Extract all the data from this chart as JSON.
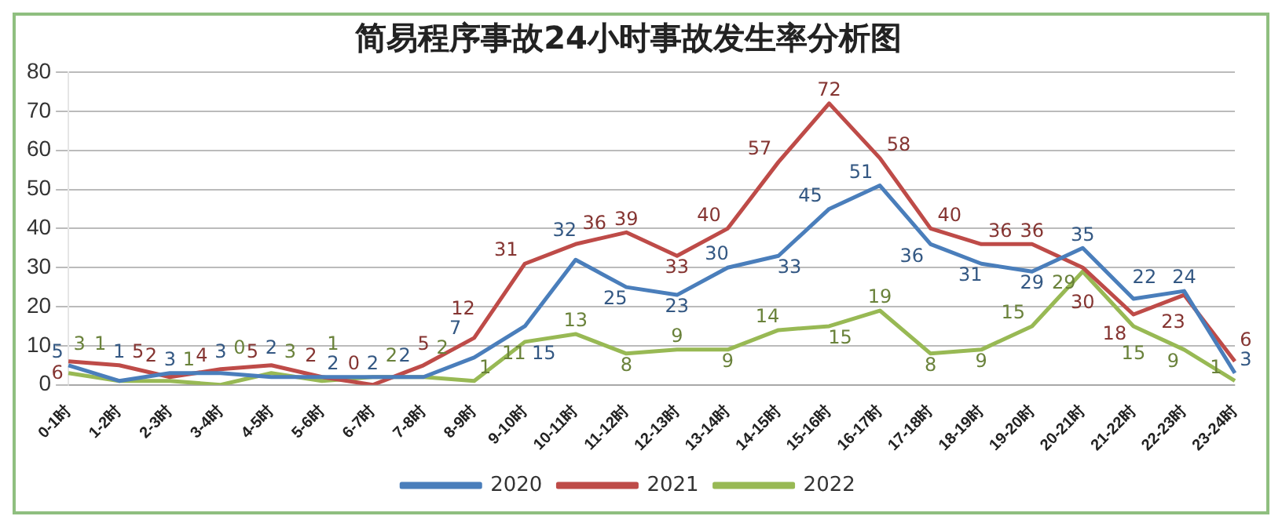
{
  "chart_data": {
    "type": "line",
    "title": "简易程序事故24小时事故发生率分析图",
    "categories": [
      "0-1时",
      "1-2时",
      "2-3时",
      "3-4时",
      "4-5时",
      "5-6时",
      "6-7时",
      "7-8时",
      "8-9时",
      "9-10时",
      "10-11时",
      "11-12时",
      "12-13时",
      "13-14时",
      "14-15时",
      "15-16时",
      "16-17时",
      "17-18时",
      "18-19时",
      "19-20时",
      "20-21时",
      "21-22时",
      "22-23时",
      "23-24时"
    ],
    "series": [
      {
        "name": "2020",
        "color": "#4a7ebb",
        "values": [
          5,
          1,
          3,
          3,
          2,
          2,
          2,
          2,
          7,
          15,
          32,
          25,
          23,
          30,
          33,
          45,
          51,
          36,
          31,
          29,
          35,
          22,
          24,
          3
        ]
      },
      {
        "name": "2021",
        "color": "#be4b48",
        "values": [
          6,
          5,
          2,
          4,
          5,
          2,
          0,
          5,
          12,
          31,
          36,
          39,
          33,
          40,
          57,
          72,
          58,
          40,
          36,
          36,
          30,
          18,
          23,
          6
        ]
      },
      {
        "name": "2022",
        "color": "#98b954",
        "values": [
          3,
          1,
          1,
          0,
          3,
          1,
          2,
          2,
          1,
          11,
          13,
          8,
          9,
          9,
          14,
          15,
          19,
          8,
          9,
          15,
          29,
          15,
          9,
          1
        ]
      }
    ],
    "ylim": [
      0,
      80
    ],
    "yticks": [
      0,
      10,
      20,
      30,
      40,
      50,
      60,
      70,
      80
    ],
    "grid": "y",
    "legend": "bottom",
    "data_labels": true,
    "marker": "none",
    "line_style": "solid"
  }
}
